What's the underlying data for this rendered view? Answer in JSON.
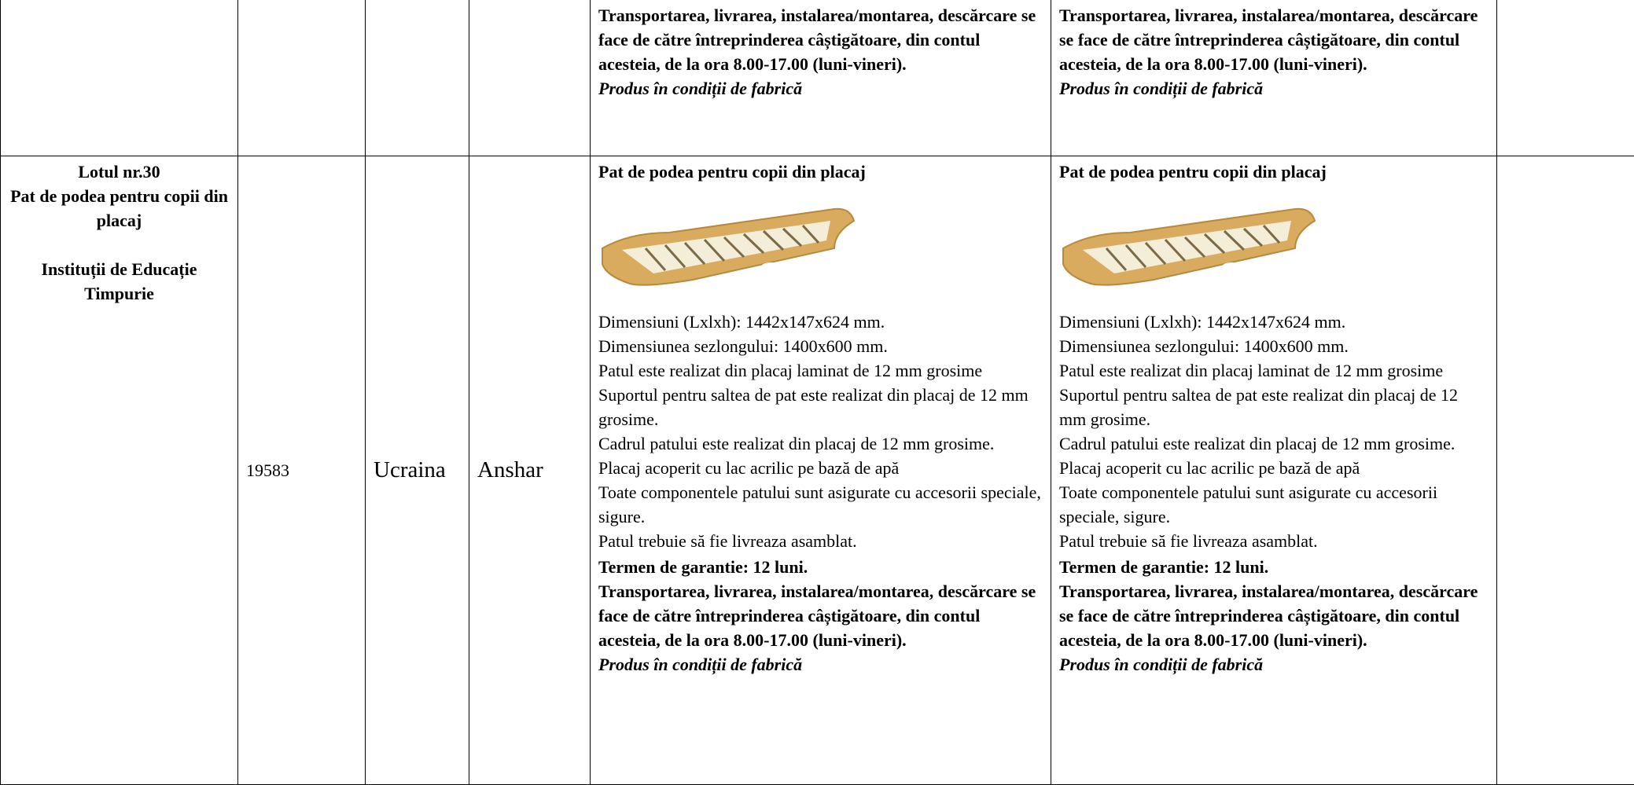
{
  "table": {
    "rows": [
      {
        "spec_a": {
          "delivery": " Transportarea, livrarea, instalarea/montarea, descărcare  se face de către întreprinderea câștigătoare,  din    contul acesteia, de la ora 8.00-17.00 (luni-vineri).",
          "note": "Produs în condiții de fabrică"
        },
        "spec_b": {
          "delivery": " Transportarea, livrarea, instalarea/montarea, descărcare  se face de către întreprinderea câștigătoare,  din    contul acesteia, de la ora 8.00-17.00 (luni-vineri).",
          "note": "Produs în condiții de fabrică"
        }
      },
      {
        "lot": {
          "number": "Lotul nr.30",
          "name": "Pat de podea pentru copii din placaj",
          "beneficiary": "Instituții de Educație Timpurie"
        },
        "code": "19583",
        "country": "Ucraina",
        "producer": "Anshar",
        "spec_a": {
          "title": "Pat de podea pentru copii din placaj",
          "details": [
            "Dimensiuni (Lxlxh): 1442x147x624 mm.",
            "Dimensiunea sezlongului: 1400x600 mm.",
            "Patul este realizat din placaj laminat de 12 mm grosime",
            "Suportul pentru saltea de pat este realizat din placaj de 12 mm grosime.",
            "Cadrul patului este realizat din placaj de 12 mm grosime.",
            "Placaj acoperit cu lac acrilic pe bază de apă",
            "Toate componentele patului sunt asigurate cu accesorii speciale, sigure.",
            "Patul trebuie să fie livreaza asamblat."
          ],
          "warranty": "Termen de garantie: 12 luni.",
          "delivery": " Transportarea, livrarea, instalarea/montarea, descărcare  se face de către întreprinderea câștigătoare,  din    contul acesteia, de la ora 8.00-17.00 (luni-vineri).",
          "note": "Produs în condiții de fabrică"
        },
        "spec_b": {
          "title": "Pat de podea pentru copii din placaj",
          "details": [
            "Dimensiuni (Lxlxh): 1442x147x624 mm.",
            "Dimensiunea sezlongului: 1400x600 mm.",
            "Patul este realizat din placaj laminat de 12 mm grosime",
            "Suportul pentru saltea de pat este realizat din placaj de 12 mm grosime.",
            "Cadrul patului este realizat din placaj de 12 mm grosime.",
            "Placaj acoperit cu lac acrilic pe bază de apă",
            "Toate componentele patului sunt asigurate cu accesorii speciale, sigure.",
            "Patul trebuie să fie livreaza asamblat."
          ],
          "warranty": "Termen de garantie: 12 luni.",
          "delivery": " Transportarea, livrarea, instalarea/montarea, descărcare  se face de către întreprinderea câștigătoare,  din    contul acesteia, de la ora 8.00-17.00 (luni-vineri).",
          "note": "Produs în condiții de fabrică"
        }
      }
    ]
  }
}
